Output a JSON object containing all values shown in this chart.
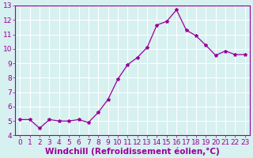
{
  "x": [
    0,
    1,
    2,
    3,
    4,
    5,
    6,
    7,
    8,
    9,
    10,
    11,
    12,
    13,
    14,
    15,
    16,
    17,
    18,
    19,
    20,
    21,
    22,
    23
  ],
  "y": [
    5.1,
    5.1,
    4.5,
    5.1,
    5.0,
    5.0,
    5.1,
    4.9,
    5.6,
    6.5,
    7.9,
    8.9,
    9.4,
    10.1,
    11.65,
    11.9,
    12.7,
    11.3,
    10.9,
    10.25,
    9.55,
    9.85,
    9.6,
    9.6
  ],
  "line_color": "#990099",
  "marker": "*",
  "marker_size": 3,
  "bg_color": "#d7f0f0",
  "grid_color": "#ffffff",
  "xlabel": "Windchill (Refroidissement éolien,°C)",
  "xlim": [
    -0.5,
    23.5
  ],
  "ylim": [
    4.0,
    13.0
  ],
  "yticks": [
    4,
    5,
    6,
    7,
    8,
    9,
    10,
    11,
    12,
    13
  ],
  "xticks": [
    0,
    1,
    2,
    3,
    4,
    5,
    6,
    7,
    8,
    9,
    10,
    11,
    12,
    13,
    14,
    15,
    16,
    17,
    18,
    19,
    20,
    21,
    22,
    23
  ],
  "tick_label_fontsize": 6.5,
  "xlabel_fontsize": 7.5,
  "tick_color": "#990099",
  "label_color": "#990099",
  "spine_color": "#990099"
}
